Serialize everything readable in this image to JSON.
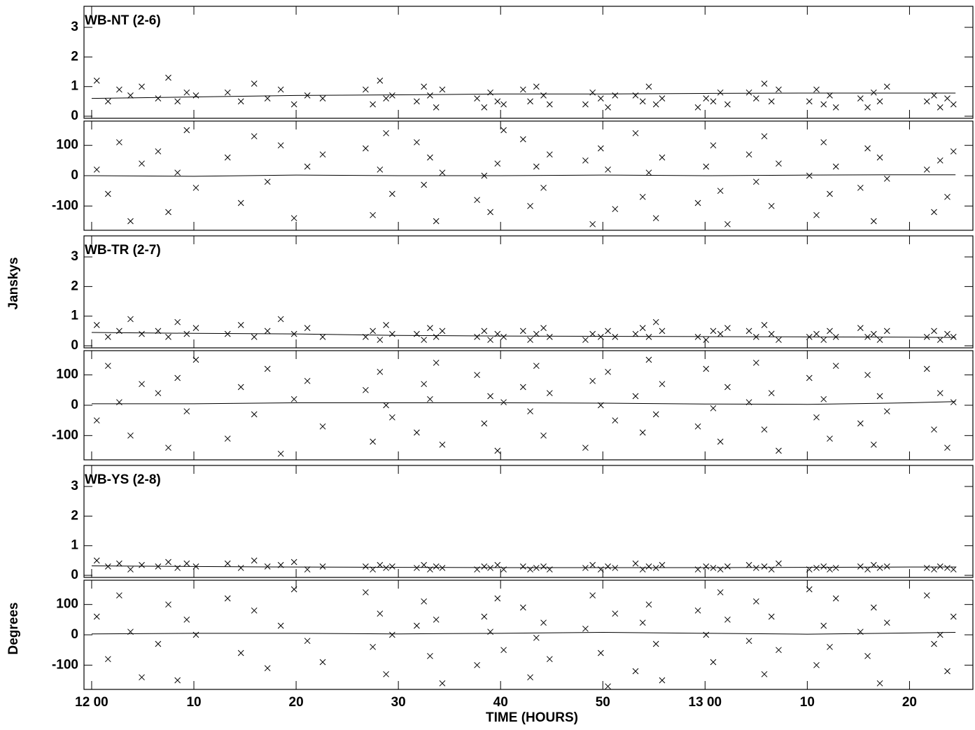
{
  "chart_data": {
    "type": "scatter",
    "x_label": "TIME (HOURS)",
    "y_label_amp": "Janskys",
    "y_label_phase": "Degrees",
    "xlim": [
      -0.75,
      86.2
    ],
    "xticks": [
      {
        "value": 0,
        "label": "12 00"
      },
      10,
      20,
      30,
      40,
      50,
      {
        "value": 60,
        "label": "13 00"
      },
      {
        "value": 70,
        "label": "10"
      },
      {
        "value": 80,
        "label": "20"
      }
    ],
    "amp_ylim": [
      -0.07,
      3.71
    ],
    "amp_yticks": [
      0,
      1,
      2,
      3
    ],
    "phase_ylim": [
      -180,
      180
    ],
    "phase_yticks": [
      -100,
      0,
      100
    ],
    "color": "#000000",
    "x": [
      0.5,
      1.6,
      2.7,
      3.8,
      4.9,
      6.5,
      7.5,
      8.4,
      9.3,
      10.2,
      13.3,
      14.6,
      15.9,
      17.2,
      18.5,
      19.8,
      21.1,
      22.6,
      26.8,
      27.5,
      28.2,
      28.8,
      29.4,
      31.8,
      32.5,
      33.1,
      33.7,
      34.3,
      37.7,
      38.4,
      39.0,
      39.7,
      40.3,
      42.2,
      42.9,
      43.5,
      44.2,
      44.8,
      48.3,
      49.0,
      49.8,
      50.5,
      51.2,
      53.2,
      53.9,
      54.5,
      55.2,
      55.8,
      59.3,
      60.1,
      60.8,
      61.5,
      62.2,
      64.3,
      65.0,
      65.8,
      66.5,
      67.2,
      70.2,
      70.9,
      71.6,
      72.2,
      72.8,
      75.2,
      75.9,
      76.5,
      77.1,
      77.8,
      81.7,
      82.4,
      83.0,
      83.7,
      84.3
    ],
    "model_x": [
      0,
      10,
      20,
      30,
      40,
      50,
      60,
      70,
      80,
      84.5
    ],
    "panels": [
      {
        "label": "WB-NT (2-6)",
        "amp": [
          1.2,
          0.5,
          0.9,
          0.7,
          1.0,
          0.6,
          1.3,
          0.5,
          0.8,
          0.7,
          0.8,
          0.5,
          1.1,
          0.6,
          0.9,
          0.4,
          0.7,
          0.6,
          0.9,
          0.4,
          1.2,
          0.6,
          0.7,
          0.5,
          1.0,
          0.7,
          0.3,
          0.9,
          0.6,
          0.3,
          0.8,
          0.5,
          0.4,
          0.9,
          0.5,
          1.0,
          0.7,
          0.4,
          0.4,
          0.8,
          0.6,
          0.3,
          0.7,
          0.7,
          0.5,
          1.0,
          0.4,
          0.6,
          0.3,
          0.6,
          0.5,
          0.8,
          0.4,
          0.8,
          0.6,
          1.1,
          0.5,
          0.9,
          0.5,
          0.9,
          0.4,
          0.7,
          0.3,
          0.6,
          0.3,
          0.8,
          0.5,
          1.0,
          0.5,
          0.7,
          0.3,
          0.6,
          0.4
        ],
        "phase": [
          20,
          -60,
          110,
          -150,
          40,
          80,
          -120,
          10,
          150,
          -40,
          60,
          -90,
          130,
          -20,
          100,
          -140,
          30,
          70,
          90,
          -130,
          20,
          140,
          -60,
          110,
          -30,
          60,
          -150,
          10,
          -80,
          0,
          -120,
          40,
          150,
          120,
          -100,
          30,
          -40,
          70,
          50,
          -160,
          90,
          20,
          -110,
          140,
          -70,
          10,
          -140,
          60,
          -90,
          30,
          100,
          -50,
          -160,
          70,
          -20,
          130,
          -100,
          40,
          0,
          -130,
          110,
          -60,
          30,
          -40,
          90,
          -150,
          60,
          -10,
          20,
          -120,
          50,
          -70,
          80
        ],
        "amp_model": [
          0.6,
          0.65,
          0.7,
          0.72,
          0.75,
          0.75,
          0.77,
          0.78,
          0.78,
          0.78
        ],
        "phase_model": [
          0,
          -2,
          2,
          0,
          0,
          2,
          0,
          2,
          3,
          3
        ]
      },
      {
        "label": "WB-TR (2-7)",
        "amp": [
          0.7,
          0.3,
          0.5,
          0.9,
          0.4,
          0.5,
          0.3,
          0.8,
          0.4,
          0.6,
          0.4,
          0.7,
          0.3,
          0.5,
          0.9,
          0.4,
          0.6,
          0.3,
          0.3,
          0.5,
          0.2,
          0.7,
          0.4,
          0.4,
          0.2,
          0.6,
          0.3,
          0.5,
          0.3,
          0.5,
          0.2,
          0.4,
          0.3,
          0.5,
          0.2,
          0.4,
          0.6,
          0.3,
          0.2,
          0.4,
          0.3,
          0.5,
          0.3,
          0.4,
          0.6,
          0.3,
          0.8,
          0.5,
          0.3,
          0.2,
          0.5,
          0.4,
          0.6,
          0.5,
          0.3,
          0.7,
          0.4,
          0.2,
          0.3,
          0.4,
          0.2,
          0.5,
          0.3,
          0.6,
          0.3,
          0.4,
          0.2,
          0.5,
          0.3,
          0.5,
          0.2,
          0.4,
          0.3
        ],
        "phase": [
          -50,
          130,
          10,
          -100,
          70,
          40,
          -140,
          90,
          -20,
          150,
          -110,
          60,
          -30,
          120,
          -160,
          20,
          80,
          -70,
          50,
          -120,
          110,
          0,
          -40,
          -90,
          70,
          20,
          140,
          -130,
          100,
          -60,
          30,
          -150,
          10,
          60,
          -20,
          130,
          -100,
          40,
          -140,
          80,
          0,
          110,
          -50,
          30,
          -90,
          150,
          -30,
          70,
          -70,
          120,
          -10,
          -120,
          60,
          10,
          140,
          -80,
          40,
          -150,
          90,
          -40,
          20,
          -110,
          130,
          -60,
          100,
          -130,
          30,
          -20,
          120,
          -80,
          40,
          -140,
          10
        ],
        "amp_model": [
          0.45,
          0.42,
          0.4,
          0.35,
          0.33,
          0.32,
          0.31,
          0.3,
          0.29,
          0.28
        ],
        "phase_model": [
          5,
          5,
          8,
          8,
          8,
          7,
          4,
          3,
          8,
          12
        ]
      },
      {
        "label": "WB-YS (2-8)",
        "amp": [
          0.5,
          0.3,
          0.4,
          0.2,
          0.35,
          0.3,
          0.45,
          0.25,
          0.4,
          0.3,
          0.4,
          0.25,
          0.5,
          0.3,
          0.35,
          0.45,
          0.2,
          0.3,
          0.3,
          0.2,
          0.35,
          0.25,
          0.3,
          0.25,
          0.35,
          0.2,
          0.3,
          0.25,
          0.2,
          0.3,
          0.25,
          0.35,
          0.2,
          0.3,
          0.2,
          0.25,
          0.3,
          0.2,
          0.25,
          0.35,
          0.2,
          0.3,
          0.25,
          0.4,
          0.2,
          0.3,
          0.25,
          0.35,
          0.2,
          0.3,
          0.25,
          0.2,
          0.3,
          0.35,
          0.25,
          0.3,
          0.2,
          0.4,
          0.2,
          0.25,
          0.3,
          0.2,
          0.25,
          0.3,
          0.2,
          0.35,
          0.25,
          0.3,
          0.25,
          0.2,
          0.3,
          0.25,
          0.2
        ],
        "phase": [
          60,
          -80,
          130,
          10,
          -140,
          -30,
          100,
          -150,
          50,
          0,
          120,
          -60,
          80,
          -110,
          30,
          150,
          -20,
          -90,
          140,
          -40,
          70,
          -130,
          0,
          30,
          110,
          -70,
          50,
          -160,
          -100,
          60,
          10,
          120,
          -50,
          90,
          -140,
          -10,
          40,
          -80,
          20,
          130,
          -60,
          -170,
          70,
          -120,
          40,
          100,
          -30,
          -150,
          80,
          0,
          -90,
          140,
          50,
          -20,
          110,
          -130,
          60,
          -50,
          150,
          -100,
          30,
          -40,
          120,
          10,
          -70,
          90,
          -160,
          40,
          130,
          -30,
          0,
          -120,
          60
        ],
        "amp_model": [
          0.32,
          0.3,
          0.28,
          0.27,
          0.26,
          0.26,
          0.26,
          0.27,
          0.28,
          0.28
        ],
        "phase_model": [
          3,
          5,
          5,
          3,
          5,
          8,
          5,
          2,
          6,
          8
        ]
      }
    ]
  }
}
